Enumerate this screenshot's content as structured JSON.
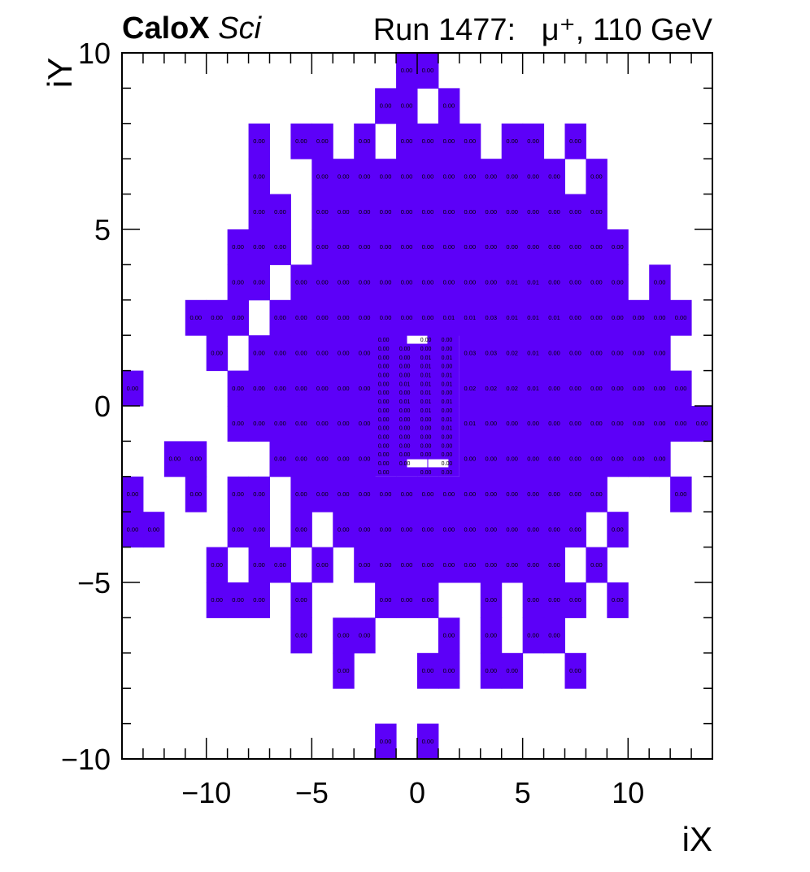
{
  "header": {
    "experiment": "CaloX",
    "subsystem": "Sci",
    "run": "Run 1477:",
    "beam": "μ⁺, 110 GeV"
  },
  "colors": {
    "fill": "#5c00f8",
    "frame": "#000000",
    "cell_text": "#000000"
  },
  "chart_data": {
    "type": "heatmap",
    "title": "",
    "xlabel": "iX",
    "ylabel": "iY",
    "xlim": [
      -14,
      14
    ],
    "ylim": [
      -10,
      10
    ],
    "xticks": [
      -10,
      -5,
      0,
      5,
      10
    ],
    "yticks": [
      -10,
      -5,
      0,
      5,
      10
    ],
    "xtick_labels": [
      "−10",
      "−5",
      "0",
      "5",
      "10"
    ],
    "ytick_labels": [
      "−10",
      "−5",
      "0",
      "5",
      "10"
    ],
    "large_cell_size": 1,
    "small_cell_size": 0.25,
    "large_cells": [
      [
        -1,
        9,
        "0.00"
      ],
      [
        0,
        9,
        "0.00"
      ],
      [
        -2,
        8,
        "0.00"
      ],
      [
        -1,
        8,
        "0.00"
      ],
      [
        1,
        8,
        "0.00"
      ],
      [
        -8,
        7,
        "0.00"
      ],
      [
        -6,
        7,
        "0.00"
      ],
      [
        -5,
        7,
        "0.00"
      ],
      [
        -3,
        7,
        "0.00"
      ],
      [
        -1,
        7,
        "0.00"
      ],
      [
        0,
        7,
        "0.00"
      ],
      [
        1,
        7,
        "0.00"
      ],
      [
        2,
        7,
        "0.00"
      ],
      [
        4,
        7,
        "0.00"
      ],
      [
        5,
        7,
        "0.00"
      ],
      [
        7,
        7,
        "0.00"
      ],
      [
        -8,
        6,
        "0.00"
      ],
      [
        -5,
        6,
        "0.00"
      ],
      [
        -4,
        6,
        "0.00"
      ],
      [
        -3,
        6,
        "0.00"
      ],
      [
        -2,
        6,
        "0.00"
      ],
      [
        -1,
        6,
        "0.00"
      ],
      [
        0,
        6,
        "0.00"
      ],
      [
        1,
        6,
        "0.00"
      ],
      [
        2,
        6,
        "0.00"
      ],
      [
        3,
        6,
        "0.00"
      ],
      [
        4,
        6,
        "0.00"
      ],
      [
        5,
        6,
        "0.00"
      ],
      [
        6,
        6,
        "0.00"
      ],
      [
        8,
        6,
        "0.00"
      ],
      [
        -8,
        5,
        "0.00"
      ],
      [
        -7,
        5,
        "0.00"
      ],
      [
        -5,
        5,
        "0.00"
      ],
      [
        -4,
        5,
        "0.00"
      ],
      [
        -3,
        5,
        "0.00"
      ],
      [
        -2,
        5,
        "0.00"
      ],
      [
        -1,
        5,
        "0.00"
      ],
      [
        0,
        5,
        "0.00"
      ],
      [
        1,
        5,
        "0.00"
      ],
      [
        2,
        5,
        "0.00"
      ],
      [
        3,
        5,
        "0.00"
      ],
      [
        4,
        5,
        "0.00"
      ],
      [
        5,
        5,
        "0.00"
      ],
      [
        6,
        5,
        "0.00"
      ],
      [
        7,
        5,
        "0.00"
      ],
      [
        8,
        5,
        "0.00"
      ],
      [
        -9,
        4,
        "0.00"
      ],
      [
        -8,
        4,
        "0.00"
      ],
      [
        -7,
        4,
        "0.00"
      ],
      [
        -5,
        4,
        "0.00"
      ],
      [
        -4,
        4,
        "0.00"
      ],
      [
        -3,
        4,
        "0.00"
      ],
      [
        -2,
        4,
        "0.00"
      ],
      [
        -1,
        4,
        "0.00"
      ],
      [
        0,
        4,
        "0.00"
      ],
      [
        1,
        4,
        "0.00"
      ],
      [
        2,
        4,
        "0.00"
      ],
      [
        3,
        4,
        "0.00"
      ],
      [
        4,
        4,
        "0.00"
      ],
      [
        5,
        4,
        "0.00"
      ],
      [
        6,
        4,
        "0.00"
      ],
      [
        7,
        4,
        "0.00"
      ],
      [
        8,
        4,
        "0.00"
      ],
      [
        9,
        4,
        "0.00"
      ],
      [
        -9,
        3,
        "0.00"
      ],
      [
        -8,
        3,
        "0.00"
      ],
      [
        -6,
        3,
        "0.00"
      ],
      [
        -5,
        3,
        "0.00"
      ],
      [
        -4,
        3,
        "0.00"
      ],
      [
        -3,
        3,
        "0.00"
      ],
      [
        -2,
        3,
        "0.00"
      ],
      [
        -1,
        3,
        "0.00"
      ],
      [
        0,
        3,
        "0.00"
      ],
      [
        1,
        3,
        "0.00"
      ],
      [
        2,
        3,
        "0.00"
      ],
      [
        3,
        3,
        "0.00"
      ],
      [
        4,
        3,
        "0.01"
      ],
      [
        5,
        3,
        "0.01"
      ],
      [
        6,
        3,
        "0.00"
      ],
      [
        7,
        3,
        "0.00"
      ],
      [
        8,
        3,
        "0.00"
      ],
      [
        9,
        3,
        "0.00"
      ],
      [
        11,
        3,
        "0.00"
      ],
      [
        -11,
        2,
        "0.00"
      ],
      [
        -10,
        2,
        "0.00"
      ],
      [
        -9,
        2,
        "0.00"
      ],
      [
        -7,
        2,
        "0.00"
      ],
      [
        -6,
        2,
        "0.00"
      ],
      [
        -5,
        2,
        "0.00"
      ],
      [
        -4,
        2,
        "0.00"
      ],
      [
        -3,
        2,
        "0.00"
      ],
      [
        -2,
        2,
        "0.00"
      ],
      [
        -1,
        2,
        "0.00"
      ],
      [
        0,
        2,
        "0.00"
      ],
      [
        1,
        2,
        "0.01"
      ],
      [
        2,
        2,
        "0.01"
      ],
      [
        3,
        2,
        "0.03"
      ],
      [
        4,
        2,
        "0.01"
      ],
      [
        5,
        2,
        "0.01"
      ],
      [
        6,
        2,
        "0.01"
      ],
      [
        7,
        2,
        "0.00"
      ],
      [
        8,
        2,
        "0.00"
      ],
      [
        9,
        2,
        "0.00"
      ],
      [
        10,
        2,
        "0.00"
      ],
      [
        11,
        2,
        "0.00"
      ],
      [
        12,
        2,
        "0.00"
      ],
      [
        -10,
        1,
        "0.00"
      ],
      [
        -8,
        1,
        "0.00"
      ],
      [
        -7,
        1,
        "0.00"
      ],
      [
        -6,
        1,
        "0.00"
      ],
      [
        -5,
        1,
        "0.00"
      ],
      [
        -4,
        1,
        "0.00"
      ],
      [
        -3,
        1,
        "0.00"
      ],
      [
        2,
        1,
        "0.03"
      ],
      [
        3,
        1,
        "0.03"
      ],
      [
        4,
        1,
        "0.02"
      ],
      [
        5,
        1,
        "0.01"
      ],
      [
        6,
        1,
        "0.00"
      ],
      [
        7,
        1,
        "0.00"
      ],
      [
        8,
        1,
        "0.00"
      ],
      [
        9,
        1,
        "0.00"
      ],
      [
        10,
        1,
        "0.00"
      ],
      [
        11,
        1,
        "0.00"
      ],
      [
        -14,
        0,
        "0.00"
      ],
      [
        -9,
        0,
        "0.00"
      ],
      [
        -8,
        0,
        "0.00"
      ],
      [
        -7,
        0,
        "0.00"
      ],
      [
        -6,
        0,
        "0.00"
      ],
      [
        -5,
        0,
        "0.00"
      ],
      [
        -4,
        0,
        "0.00"
      ],
      [
        -3,
        0,
        "0.00"
      ],
      [
        2,
        0,
        "0.02"
      ],
      [
        3,
        0,
        "0.02"
      ],
      [
        4,
        0,
        "0.02"
      ],
      [
        5,
        0,
        "0.01"
      ],
      [
        6,
        0,
        "0.00"
      ],
      [
        7,
        0,
        "0.00"
      ],
      [
        8,
        0,
        "0.00"
      ],
      [
        9,
        0,
        "0.00"
      ],
      [
        10,
        0,
        "0.00"
      ],
      [
        11,
        0,
        "0.00"
      ],
      [
        12,
        0,
        "0.00"
      ],
      [
        -9,
        -1,
        "0.00"
      ],
      [
        -8,
        -1,
        "0.00"
      ],
      [
        -7,
        -1,
        "0.00"
      ],
      [
        -6,
        -1,
        "0.00"
      ],
      [
        -5,
        -1,
        "0.00"
      ],
      [
        -4,
        -1,
        "0.00"
      ],
      [
        -3,
        -1,
        "0.00"
      ],
      [
        2,
        -1,
        "0.01"
      ],
      [
        3,
        -1,
        "0.00"
      ],
      [
        4,
        -1,
        "0.00"
      ],
      [
        5,
        -1,
        "0.00"
      ],
      [
        6,
        -1,
        "0.00"
      ],
      [
        7,
        -1,
        "0.00"
      ],
      [
        8,
        -1,
        "0.00"
      ],
      [
        9,
        -1,
        "0.00"
      ],
      [
        10,
        -1,
        "0.00"
      ],
      [
        11,
        -1,
        "0.00"
      ],
      [
        12,
        -1,
        "0.00"
      ],
      [
        13,
        -1,
        "0.00"
      ],
      [
        -12,
        -2,
        "0.00"
      ],
      [
        -11,
        -2,
        "0.00"
      ],
      [
        -7,
        -2,
        "0.00"
      ],
      [
        -6,
        -2,
        "0.00"
      ],
      [
        -5,
        -2,
        "0.00"
      ],
      [
        -4,
        -2,
        "0.00"
      ],
      [
        -3,
        -2,
        "0.00"
      ],
      [
        2,
        -2,
        "0.00"
      ],
      [
        3,
        -2,
        "0.00"
      ],
      [
        4,
        -2,
        "0.00"
      ],
      [
        5,
        -2,
        "0.00"
      ],
      [
        6,
        -2,
        "0.00"
      ],
      [
        7,
        -2,
        "0.00"
      ],
      [
        8,
        -2,
        "0.00"
      ],
      [
        9,
        -2,
        "0.00"
      ],
      [
        10,
        -2,
        "0.00"
      ],
      [
        11,
        -2,
        "0.00"
      ],
      [
        -14,
        -3,
        "0.00"
      ],
      [
        -11,
        -3,
        "0.00"
      ],
      [
        -9,
        -3,
        "0.00"
      ],
      [
        -8,
        -3,
        "0.00"
      ],
      [
        -6,
        -3,
        "0.00"
      ],
      [
        -5,
        -3,
        "0.00"
      ],
      [
        -4,
        -3,
        "0.00"
      ],
      [
        -3,
        -3,
        "0.00"
      ],
      [
        -2,
        -3,
        "0.00"
      ],
      [
        -1,
        -3,
        "0.00"
      ],
      [
        0,
        -3,
        "0.00"
      ],
      [
        1,
        -3,
        "0.00"
      ],
      [
        2,
        -3,
        "0.00"
      ],
      [
        3,
        -3,
        "0.00"
      ],
      [
        4,
        -3,
        "0.00"
      ],
      [
        5,
        -3,
        "0.00"
      ],
      [
        6,
        -3,
        "0.00"
      ],
      [
        7,
        -3,
        "0.00"
      ],
      [
        8,
        -3,
        "0.00"
      ],
      [
        12,
        -3,
        "0.00"
      ],
      [
        -14,
        -4,
        "0.00"
      ],
      [
        -13,
        -4,
        "0.00"
      ],
      [
        -9,
        -4,
        "0.00"
      ],
      [
        -8,
        -4,
        "0.00"
      ],
      [
        -6,
        -4,
        "0.00"
      ],
      [
        -4,
        -4,
        "0.00"
      ],
      [
        -3,
        -4,
        "0.00"
      ],
      [
        -2,
        -4,
        "0.00"
      ],
      [
        -1,
        -4,
        "0.00"
      ],
      [
        0,
        -4,
        "0.00"
      ],
      [
        1,
        -4,
        "0.00"
      ],
      [
        2,
        -4,
        "0.00"
      ],
      [
        3,
        -4,
        "0.00"
      ],
      [
        4,
        -4,
        "0.00"
      ],
      [
        5,
        -4,
        "0.00"
      ],
      [
        6,
        -4,
        "0.00"
      ],
      [
        7,
        -4,
        "0.00"
      ],
      [
        9,
        -4,
        "0.00"
      ],
      [
        -10,
        -5,
        "0.00"
      ],
      [
        -8,
        -5,
        "0.00"
      ],
      [
        -7,
        -5,
        "0.00"
      ],
      [
        -5,
        -5,
        "0.00"
      ],
      [
        -3,
        -5,
        "0.00"
      ],
      [
        -2,
        -5,
        "0.00"
      ],
      [
        -1,
        -5,
        "0.00"
      ],
      [
        0,
        -5,
        "0.00"
      ],
      [
        1,
        -5,
        "0.00"
      ],
      [
        2,
        -5,
        "0.00"
      ],
      [
        3,
        -5,
        "0.00"
      ],
      [
        4,
        -5,
        "0.00"
      ],
      [
        5,
        -5,
        "0.00"
      ],
      [
        6,
        -5,
        "0.00"
      ],
      [
        8,
        -5,
        "0.00"
      ],
      [
        -10,
        -6,
        "0.00"
      ],
      [
        -9,
        -6,
        "0.00"
      ],
      [
        -8,
        -6,
        "0.00"
      ],
      [
        -6,
        -6,
        "0.00"
      ],
      [
        -2,
        -6,
        "0.00"
      ],
      [
        -1,
        -6,
        "0.00"
      ],
      [
        0,
        -6,
        "0.00"
      ],
      [
        3,
        -6,
        "0.00"
      ],
      [
        5,
        -6,
        "0.00"
      ],
      [
        6,
        -6,
        "0.00"
      ],
      [
        7,
        -6,
        "0.00"
      ],
      [
        9,
        -6,
        "0.00"
      ],
      [
        -6,
        -7,
        "0.00"
      ],
      [
        -4,
        -7,
        "0.00"
      ],
      [
        -3,
        -7,
        "0.00"
      ],
      [
        1,
        -7,
        "0.00"
      ],
      [
        3,
        -7,
        "0.00"
      ],
      [
        5,
        -7,
        "0.00"
      ],
      [
        6,
        -7,
        "0.00"
      ],
      [
        -4,
        -8,
        "0.00"
      ],
      [
        0,
        -8,
        "0.00"
      ],
      [
        1,
        -8,
        "0.00"
      ],
      [
        3,
        -8,
        "0.00"
      ],
      [
        4,
        -8,
        "0.00"
      ],
      [
        7,
        -8,
        "0.00"
      ],
      [
        -2,
        -10,
        "0.00"
      ],
      [
        0,
        -10,
        "0.00"
      ]
    ],
    "fine_region": {
      "x_range": [
        -2,
        2
      ],
      "y_range": [
        -2,
        2
      ],
      "columns_x": [
        -1.875,
        -0.875,
        0.125,
        1.125
      ],
      "rows": [
        [
          1.875,
          [
            "0.00",
            "",
            "0.00",
            "0.00"
          ]
        ],
        [
          1.625,
          [
            "0.00",
            "0.00",
            "0.00",
            "0.00"
          ]
        ],
        [
          1.375,
          [
            "0.00",
            "0.00",
            "0.01",
            "0.01"
          ]
        ],
        [
          1.125,
          [
            "0.00",
            "0.00",
            "0.01",
            "0.00"
          ]
        ],
        [
          0.875,
          [
            "0.00",
            "0.00",
            "0.01",
            "0.01"
          ]
        ],
        [
          0.625,
          [
            "0.00",
            "0.01",
            "0.01",
            "0.01"
          ]
        ],
        [
          0.375,
          [
            "0.00",
            "0.00",
            "0.01",
            "0.00"
          ]
        ],
        [
          0.125,
          [
            "0.00",
            "0.01",
            "0.01",
            "0.01"
          ]
        ],
        [
          -0.125,
          [
            "0.00",
            "0.00",
            "0.01",
            "0.00"
          ]
        ],
        [
          -0.375,
          [
            "0.00",
            "0.00",
            "0.00",
            "0.01"
          ]
        ],
        [
          -0.625,
          [
            "0.00",
            "0.00",
            "0.00",
            "0.01"
          ]
        ],
        [
          -0.875,
          [
            "0.00",
            "0.00",
            "0.00",
            "0.00"
          ]
        ],
        [
          -1.125,
          [
            "0.00",
            "0.00",
            "0.00",
            "0.00"
          ]
        ],
        [
          -1.375,
          [
            "0.00",
            "0.00",
            "0.00",
            "0.00"
          ]
        ],
        [
          -1.625,
          [
            "0.00",
            "0.00",
            "",
            "0.00"
          ]
        ],
        [
          -1.875,
          [
            "0.00",
            "",
            "0.00",
            "0.00"
          ]
        ]
      ],
      "holes": [
        [
          -0.5,
          1.75
        ],
        [
          0.5,
          -1.75
        ],
        [
          -0.5,
          -1.75
        ]
      ]
    }
  }
}
